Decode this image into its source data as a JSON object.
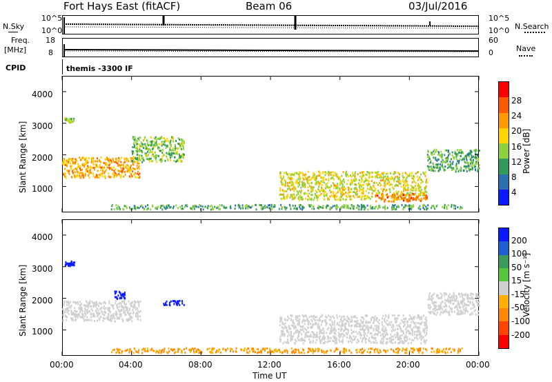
{
  "header": {
    "radar": "Fort Hays East (fitACF)",
    "beam": "Beam 06",
    "date": "03/Jul/2016"
  },
  "top_panels": {
    "nsky_label": "N.Sky",
    "nsearch_label": "N.Search",
    "noise_ticks_left": [
      "10^5",
      "10^0"
    ],
    "noise_ticks_right": [
      "10^5",
      "10^0"
    ],
    "freq_label_top": "Freq.",
    "freq_label_unit": "[MHz]",
    "freq_ticks_left": [
      "18",
      "8"
    ],
    "nave_ticks_right": [
      "60",
      "0"
    ],
    "nave_label": "Nave",
    "cpid_label": "CPID",
    "cpid_text": "themis -3300 IF"
  },
  "power_panel": {
    "ylabel": "Slant Range [km]",
    "colorbar_label": "Power [dB]",
    "colorbar_ticks": [
      "28",
      "24",
      "20",
      "16",
      "12",
      "8",
      "4"
    ],
    "colorbar_colors": [
      "#ff0000",
      "#ff5a00",
      "#ff9900",
      "#ffd400",
      "#8fd13c",
      "#2f9a5a",
      "#2b6fb0",
      "#0a19ff"
    ]
  },
  "velocity_panel": {
    "ylabel": "Slant Range [km]",
    "colorbar_label": "Velocity [m s⁻¹]",
    "colorbar_ticks": [
      "200",
      "100",
      "50",
      "15",
      "-15",
      "-50",
      "-100",
      "-200"
    ],
    "colorbar_colors": [
      "#0a19ff",
      "#1d5fd0",
      "#3a9a5a",
      "#54c83a",
      "#cfcfcf",
      "#ffb000",
      "#ff8800",
      "#ff4400",
      "#ff0000"
    ]
  },
  "x_axis": {
    "label": "Time UT",
    "ticks": [
      "00:00",
      "04:00",
      "08:00",
      "12:00",
      "16:00",
      "20:00",
      "00:00"
    ]
  },
  "chart_data": [
    {
      "type": "heatmap",
      "title": "Power [dB]",
      "xlabel": "Time UT",
      "ylabel": "Slant Range [km]",
      "x_range_hours": [
        0,
        24
      ],
      "ylim": [
        180,
        4500
      ],
      "yticks": [
        1000,
        2000,
        3000,
        4000
      ],
      "colorbar_range": [
        0,
        30
      ],
      "echo_regions": [
        {
          "start_h": 0.0,
          "end_h": 4.5,
          "y": [
            1300,
            1950
          ],
          "value": 20
        },
        {
          "start_h": 4.0,
          "end_h": 7.0,
          "y": [
            1800,
            2600
          ],
          "value": 12
        },
        {
          "start_h": 0.1,
          "end_h": 0.7,
          "y": [
            3050,
            3200
          ],
          "value": 12
        },
        {
          "start_h": 2.8,
          "end_h": 23.0,
          "y": [
            300,
            450
          ],
          "value": 10
        },
        {
          "start_h": 12.5,
          "end_h": 21.0,
          "y": [
            600,
            1500
          ],
          "value": 16
        },
        {
          "start_h": 18.0,
          "end_h": 21.0,
          "y": [
            550,
            800
          ],
          "value": 24
        },
        {
          "start_h": 21.0,
          "end_h": 24.0,
          "y": [
            1500,
            2200
          ],
          "value": 10
        }
      ]
    },
    {
      "type": "heatmap",
      "title": "Velocity [m s⁻¹]",
      "xlabel": "Time UT",
      "ylabel": "Slant Range [km]",
      "x_range_hours": [
        0,
        24
      ],
      "ylim": [
        180,
        4500
      ],
      "yticks": [
        1000,
        2000,
        3000,
        4000
      ],
      "colorbar_range": [
        -200,
        200
      ],
      "echo_regions": [
        {
          "start_h": 0.0,
          "end_h": 4.5,
          "y": [
            1300,
            1950
          ],
          "value": 0
        },
        {
          "start_h": 0.1,
          "end_h": 0.7,
          "y": [
            3050,
            3200
          ],
          "value": 200
        },
        {
          "start_h": 3.0,
          "end_h": 3.6,
          "y": [
            2000,
            2300
          ],
          "value": 200
        },
        {
          "start_h": 5.8,
          "end_h": 7.0,
          "y": [
            1800,
            1950
          ],
          "value": 200
        },
        {
          "start_h": 2.8,
          "end_h": 23.0,
          "y": [
            300,
            450
          ],
          "value": -50
        },
        {
          "start_h": 12.5,
          "end_h": 21.0,
          "y": [
            600,
            1500
          ],
          "value": 0
        },
        {
          "start_h": 21.0,
          "end_h": 24.0,
          "y": [
            1500,
            2200
          ],
          "value": 0
        }
      ]
    }
  ]
}
